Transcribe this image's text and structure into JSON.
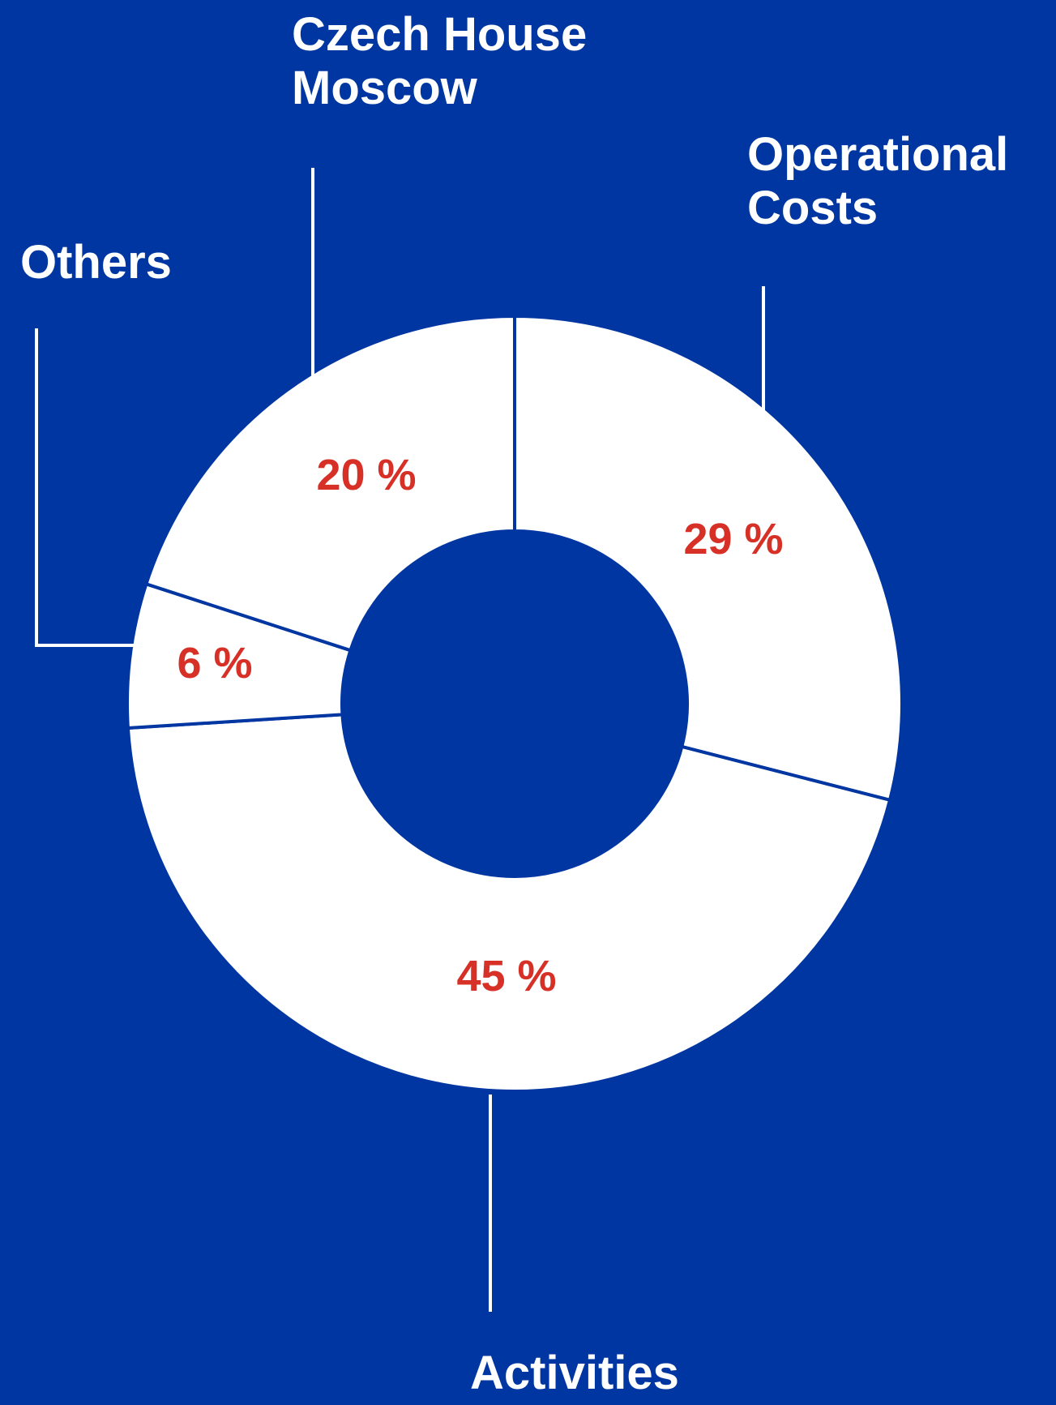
{
  "colors": {
    "background": "#0036a1",
    "slice_fill": "#ffffff",
    "percent_text": "#d63027",
    "label_text": "#ffffff"
  },
  "chart_data": {
    "type": "pie",
    "variant": "donut",
    "categories": [
      "Operational Costs",
      "Activities",
      "Others",
      "Czech House Moscow"
    ],
    "values": [
      29,
      45,
      6,
      20
    ],
    "value_labels": [
      "29 %",
      "45 %",
      "6 %",
      "20 %"
    ],
    "label_lines": [
      [
        "Operational",
        "Costs"
      ],
      [
        "Activities"
      ],
      [
        "Others"
      ],
      [
        "Czech House",
        "Moscow"
      ]
    ],
    "start_angle_deg": 0,
    "direction": "clockwise",
    "legend": "none"
  }
}
